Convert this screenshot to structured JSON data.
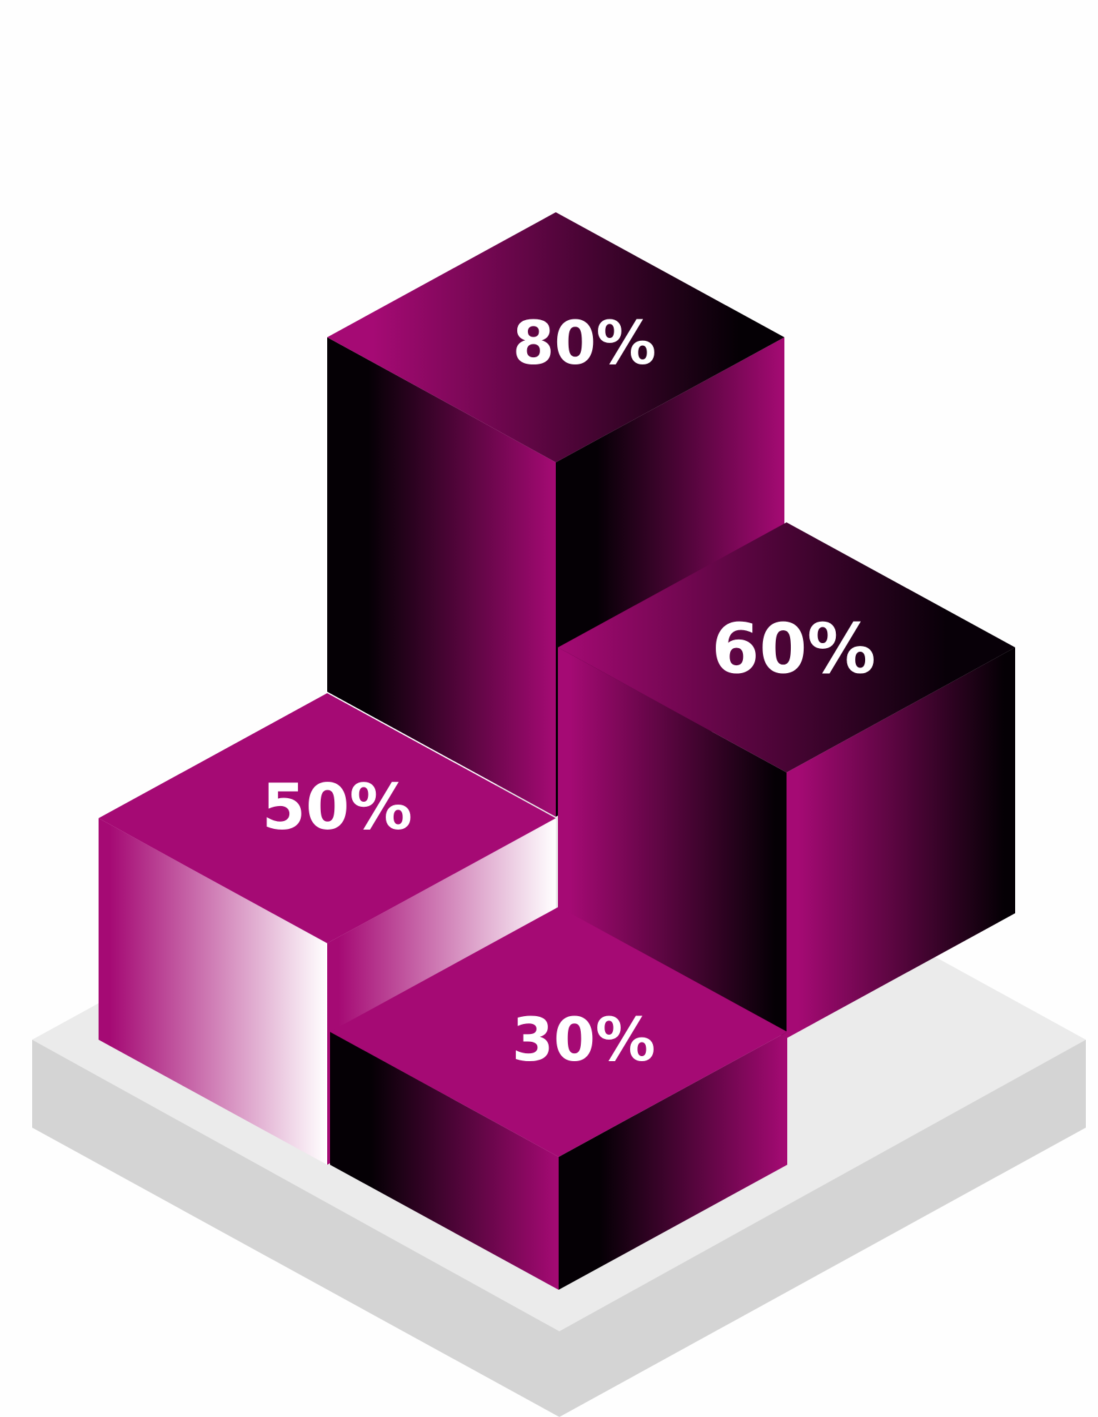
{
  "chart_data": {
    "type": "bar",
    "style": "isometric-3d",
    "values": [
      80,
      60,
      50,
      30
    ],
    "labels": [
      "80%",
      "60%",
      "50%",
      "30%"
    ],
    "colors": {
      "magenta": "#a50a74",
      "dark": "#050005",
      "white": "#ffffff",
      "base_top": "#ebebeb",
      "base_side": "#d4d4d4",
      "background": "#fefefe"
    }
  }
}
